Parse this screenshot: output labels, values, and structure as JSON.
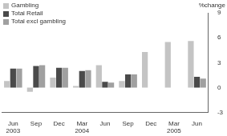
{
  "chart_data": {
    "type": "bar",
    "y_label": "%change",
    "categories": [
      "Jun 2003",
      "Sep",
      "Dec",
      "Mar 2004",
      "Jun",
      "Sep",
      "Dec",
      "Mar 2005",
      "Jun"
    ],
    "series": [
      {
        "name": "Gambling",
        "color": "#c4c4c4",
        "values": [
          0.8,
          -0.5,
          1.2,
          0.2,
          2.7,
          0.8,
          4.3,
          5.5,
          5.6
        ]
      },
      {
        "name": "Total Retail",
        "color": "#4a4a4a",
        "values": [
          2.3,
          2.6,
          2.4,
          2.0,
          0.7,
          1.6,
          0.0,
          0.0,
          1.3
        ]
      },
      {
        "name": "Total excl gambling",
        "color": "#a0a0a0",
        "values": [
          2.3,
          2.7,
          2.4,
          2.1,
          0.6,
          1.6,
          0.0,
          0.0,
          1.1
        ]
      }
    ],
    "ylim": [
      -3,
      9
    ],
    "yticks": [
      -3,
      0,
      3,
      6,
      9
    ],
    "grid": false,
    "legend": "top-left"
  }
}
